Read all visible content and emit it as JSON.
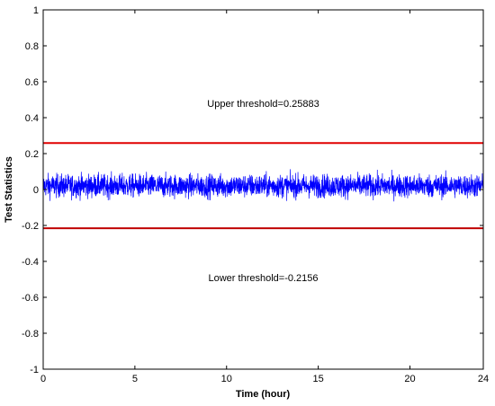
{
  "chart_data": {
    "type": "line",
    "xlabel": "Time (hour)",
    "ylabel": "Test Statistics",
    "xlim": [
      0,
      24
    ],
    "ylim": [
      -1,
      1
    ],
    "x_ticks": [
      0,
      5,
      10,
      15,
      20,
      24
    ],
    "y_ticks": [
      -1,
      -0.8,
      -0.6,
      -0.4,
      -0.2,
      0,
      0.2,
      0.4,
      0.6,
      0.8,
      1
    ],
    "y_tick_labels": [
      "-1",
      "-0.8",
      "-0.6",
      "-0.4",
      "-0.2",
      "0",
      "0.2",
      "0.4",
      "0.6",
      "0.8",
      "1"
    ],
    "x_tick_labels": [
      "0",
      "5",
      "10",
      "15",
      "20",
      "24"
    ],
    "grid": false,
    "series": [
      {
        "kind": "noise",
        "color": "#0000ff",
        "x_range": [
          0,
          24
        ],
        "mean": 0.02,
        "amplitude_range": [
          -0.08,
          0.17
        ]
      }
    ],
    "thresholds": [
      {
        "value": 0.25883,
        "color": "#e00000"
      },
      {
        "value": -0.2156,
        "color": "#c00000"
      }
    ],
    "annotations": [
      {
        "text": "Upper threshold=0.25883",
        "x": 12,
        "y": 0.48
      },
      {
        "text": "Lower threshold=-0.2156",
        "x": 12,
        "y": -0.49
      }
    ]
  }
}
